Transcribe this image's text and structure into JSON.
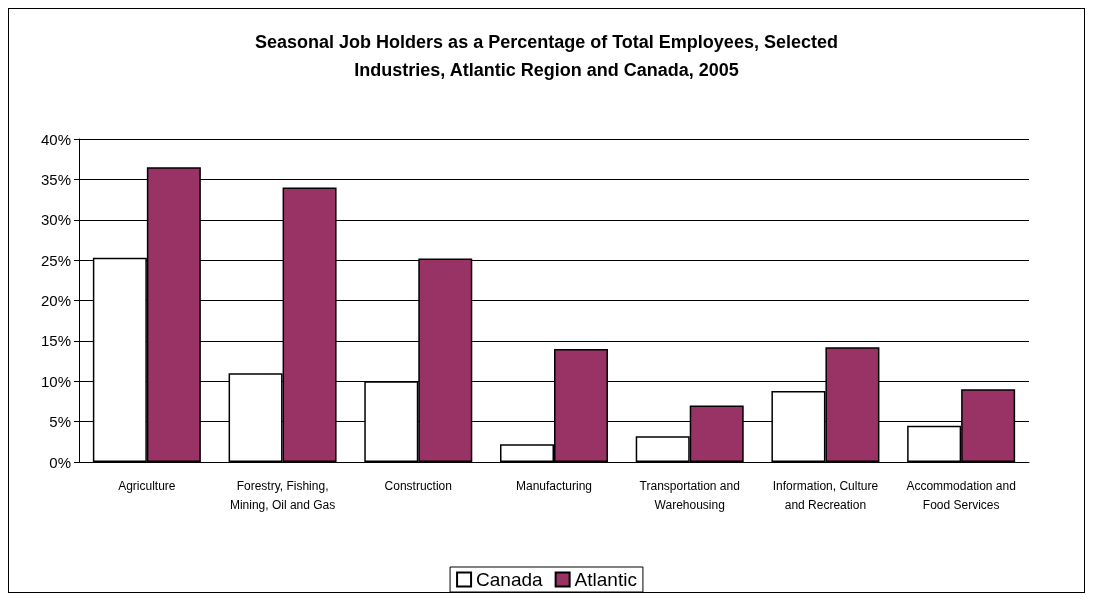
{
  "chart_data": {
    "type": "bar",
    "title": "Seasonal Job Holders as a Percentage of Total Employees, Selected Industries, Atlantic Region and Canada, 2005",
    "categories": [
      "Agriculture",
      "Forestry, Fishing, Mining, Oil and Gas",
      "Construction",
      "Manufacturing",
      "Transportation and Warehousing",
      "Information, Culture and Recreation",
      "Accommodation and Food Services"
    ],
    "series": [
      {
        "name": "Canada",
        "color": "#ffffff",
        "values": [
          25.3,
          11,
          10,
          2.2,
          3.2,
          8.8,
          4.5
        ]
      },
      {
        "name": "Atlantic",
        "color": "#993366",
        "values": [
          36.5,
          34,
          25.2,
          14,
          7,
          14.2,
          9
        ]
      }
    ],
    "ylim": [
      0,
      40
    ],
    "yticks": [
      {
        "value": 0,
        "label": "0%"
      },
      {
        "value": 5,
        "label": "5%"
      },
      {
        "value": 10,
        "label": "10%"
      },
      {
        "value": 15,
        "label": "15%"
      },
      {
        "value": 20,
        "label": "20%"
      },
      {
        "value": 25,
        "label": "25%"
      },
      {
        "value": 30,
        "label": "30%"
      },
      {
        "value": 35,
        "label": "35%"
      },
      {
        "value": 40,
        "label": "40%"
      }
    ],
    "grid": "y",
    "legend": "bottom"
  }
}
